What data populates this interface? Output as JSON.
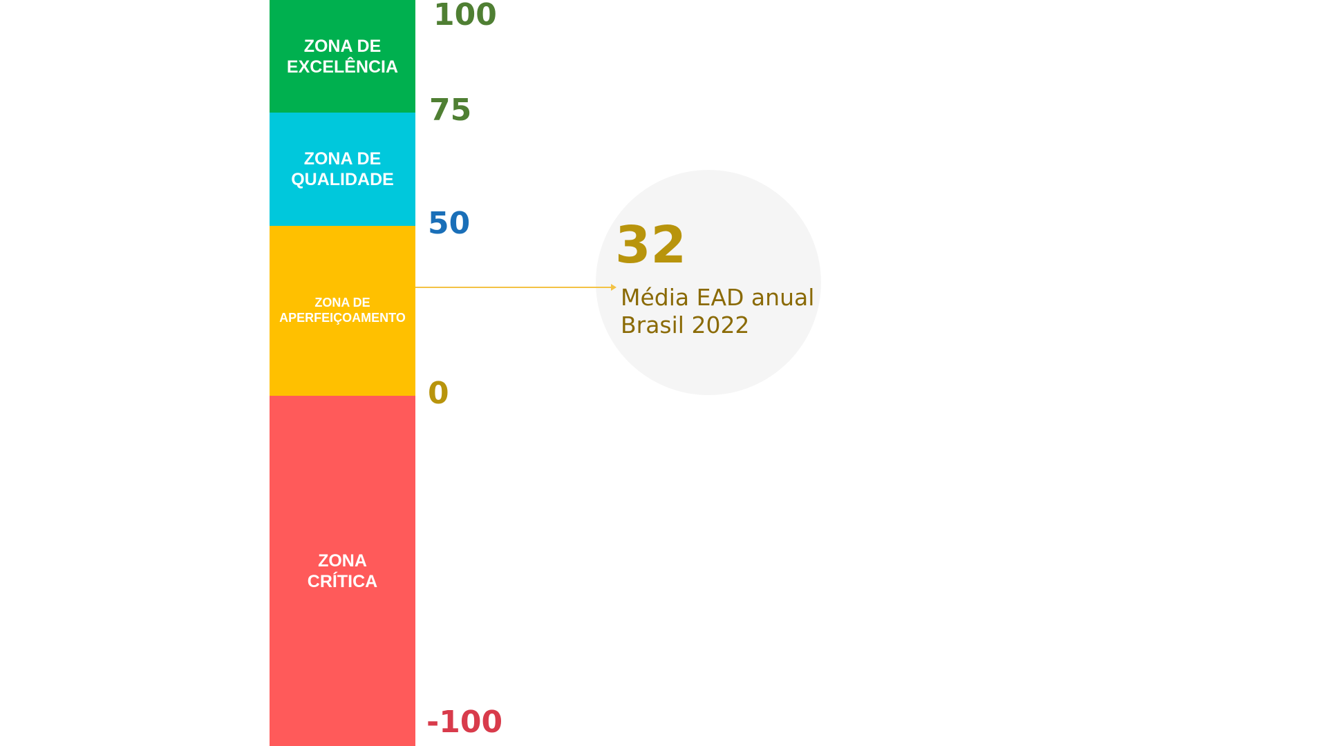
{
  "chart_data": {
    "type": "bar",
    "orientation": "vertical-stacked-scale",
    "zones": [
      {
        "label": "ZONA DE\nEXCELÊNCIA",
        "from": 75,
        "to": 100,
        "color": "#00b04f"
      },
      {
        "label": "ZONA DE\nQUALIDADE",
        "from": 50,
        "to": 75,
        "color": "#00c8dc"
      },
      {
        "label": "ZONA DE\nAPERFEIÇOAMENTO",
        "from": 0,
        "to": 50,
        "color": "#ffc000"
      },
      {
        "label": "ZONA\nCRÍTICA",
        "from": -100,
        "to": 0,
        "color": "#ff5a5a"
      }
    ],
    "ticks": [
      {
        "label": "100",
        "value": 100,
        "color": "#4f7f33"
      },
      {
        "label": "75",
        "value": 75,
        "color": "#4f7f33"
      },
      {
        "label": "50",
        "value": 50,
        "color": "#1a6fb8"
      },
      {
        "label": "0",
        "value": 0,
        "color": "#b8940c"
      },
      {
        "label": "-100",
        "value": -100,
        "color": "#d83b4b"
      }
    ],
    "marker": {
      "value": 32,
      "value_label": "32",
      "label": "Média EAD anual\nBrasil 2022",
      "value_color": "#b8940c",
      "label_color": "#8a6a05",
      "line_color": "#f3c244",
      "circle_color": "#f5f5f5"
    }
  }
}
